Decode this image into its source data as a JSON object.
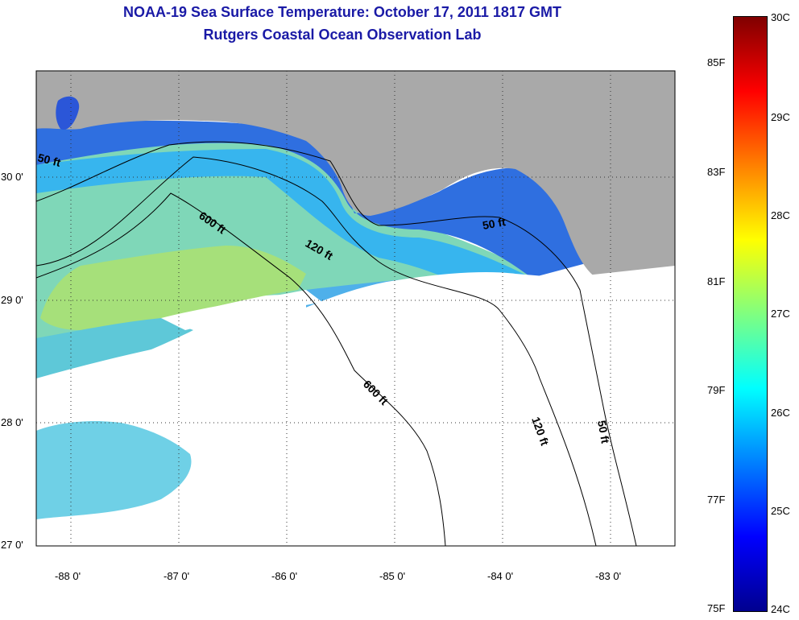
{
  "title": {
    "line1": "NOAA-19 Sea Surface Temperature:  October 17, 2011 1817 GMT",
    "line2": "Rutgers Coastal Ocean Observation Lab"
  },
  "map": {
    "lat_labels": [
      "30 0'",
      "29 0'",
      "28 0'",
      "27 0'"
    ],
    "lon_labels": [
      "-88 0'",
      "-87 0'",
      "-86 0'",
      "-85 0'",
      "-84 0'",
      "-83 0'"
    ],
    "contour_labels": [
      "50 ft",
      "600 ft",
      "120 ft",
      "50 ft",
      "600 ft",
      "120 ft",
      "50 ft"
    ],
    "colors": {
      "land": "#a9a9a9",
      "cloud": "#ffffff",
      "frame": "#000000"
    }
  },
  "colorbar": {
    "f_labels": [
      "85F",
      "83F",
      "81F",
      "79F",
      "77F",
      "75F"
    ],
    "c_labels": [
      "30C",
      "29C",
      "28C",
      "27C",
      "26C",
      "25C",
      "24C"
    ],
    "range_c": [
      24,
      30
    ],
    "colors": [
      "#00008f",
      "#0000ff",
      "#0080ff",
      "#00ffff",
      "#80ff80",
      "#ffff00",
      "#ff8000",
      "#ff0000",
      "#800000"
    ]
  }
}
